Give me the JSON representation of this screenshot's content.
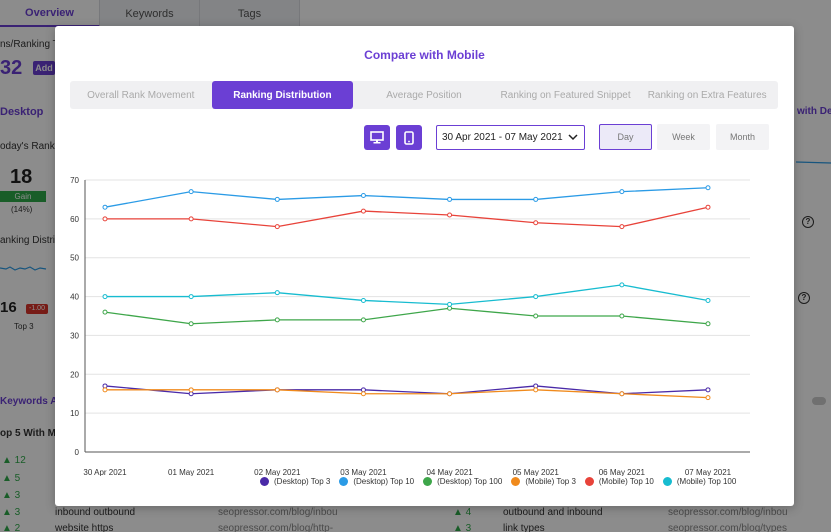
{
  "background": {
    "tabs": [
      "Overview",
      "Keywords",
      "Tags"
    ],
    "ranking_text": "ns/Ranking Tr",
    "big_number": "32",
    "add_label": "Add",
    "desktop_label": "Desktop",
    "today_rank": "oday's Rank M",
    "rank_value": "18",
    "gain_label": "Gain",
    "gain_pct": "(14%)",
    "ranking_distrib": "anking Distrib",
    "top3_value": "16",
    "top3_change": "-1.00",
    "top3_label": "Top 3",
    "keywords_label": "Keywords Ar",
    "top5_label": "op 5 With Mo",
    "right_link": "with Des",
    "rows_left": [
      {
        "delta": "▲ 12",
        "keyword": "",
        "url": ""
      },
      {
        "delta": "▲ 5",
        "keyword": "",
        "url": ""
      },
      {
        "delta": "▲ 3",
        "keyword": "",
        "url": ""
      },
      {
        "delta": "▲ 3",
        "keyword": "inbound outbound",
        "url": "seopressor.com/blog/inbou"
      },
      {
        "delta": "▲ 2",
        "keyword": "website https",
        "url": "seopressor.com/blog/http-"
      }
    ],
    "rows_right": [
      {
        "delta": "▲ 4",
        "keyword": "outbound and inbound",
        "url": "seopressor.com/blog/inbou"
      },
      {
        "delta": "▲ 3",
        "keyword": "link types",
        "url": "seopressor.com/blog/types"
      }
    ]
  },
  "modal": {
    "title": "Compare with Mobile",
    "tabs": [
      {
        "label": "Overall Rank Movement",
        "active": false
      },
      {
        "label": "Ranking Distribution",
        "active": true
      },
      {
        "label": "Average Position",
        "active": false
      },
      {
        "label": "Ranking on Featured Snippet",
        "active": false
      },
      {
        "label": "Ranking on Extra Features",
        "active": false
      }
    ],
    "devices": [
      "desktop-icon",
      "mobile-icon"
    ],
    "date_range": "30 Apr 2021 - 07 May 2021",
    "periods": [
      {
        "label": "Day",
        "active": true
      },
      {
        "label": "Week",
        "active": false
      },
      {
        "label": "Month",
        "active": false
      }
    ],
    "accent": "#6b3fd4"
  },
  "chart_data": {
    "type": "line",
    "x": [
      "30 Apr 2021",
      "01 May 2021",
      "02 May 2021",
      "03 May 2021",
      "04 May 2021",
      "05 May 2021",
      "06 May 2021",
      "07 May 2021"
    ],
    "ylim": [
      0,
      70
    ],
    "yticks": [
      0,
      10,
      20,
      30,
      40,
      50,
      60,
      70
    ],
    "grid": true,
    "legend_position": "bottom",
    "series": [
      {
        "name": "(Desktop) Top 3",
        "color": "#4a2aa8",
        "values": [
          17,
          15,
          16,
          16,
          15,
          17,
          15,
          16
        ]
      },
      {
        "name": "(Desktop) Top 10",
        "color": "#2b9be6",
        "values": [
          63,
          67,
          65,
          66,
          65,
          65,
          67,
          68
        ]
      },
      {
        "name": "(Desktop) Top 100",
        "color": "#3ea64a",
        "values": [
          36,
          33,
          34,
          34,
          37,
          35,
          35,
          33
        ]
      },
      {
        "name": "(Mobile) Top 3",
        "color": "#f08a1c",
        "values": [
          16,
          16,
          16,
          15,
          15,
          16,
          15,
          14
        ]
      },
      {
        "name": "(Mobile) Top 10",
        "color": "#e8433a",
        "values": [
          60,
          60,
          58,
          62,
          61,
          59,
          58,
          63
        ]
      },
      {
        "name": "(Mobile) Top 100",
        "color": "#17bcd0",
        "values": [
          40,
          40,
          41,
          39,
          38,
          40,
          43,
          39
        ]
      }
    ]
  }
}
